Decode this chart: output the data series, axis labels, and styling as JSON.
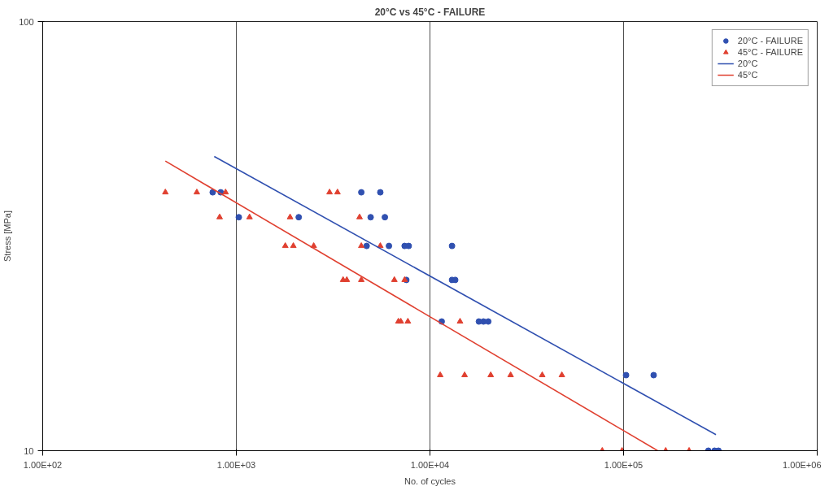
{
  "chart_data": {
    "type": "scatter",
    "title": "20°C vs 45°C - FAILURE",
    "xlabel": "No. of cycles",
    "ylabel": "Stress [MPa]",
    "log": "xy",
    "xlim": [
      100,
      1000000
    ],
    "ylim": [
      10,
      100
    ],
    "xticks": [
      {
        "value": 100,
        "label": "1.00E+02"
      },
      {
        "value": 1000,
        "label": "1.00E+03"
      },
      {
        "value": 10000,
        "label": "1.00E+04"
      },
      {
        "value": 100000,
        "label": "1.00E+05"
      },
      {
        "value": 1000000,
        "label": "1.00E+06"
      }
    ],
    "yticks": [
      10,
      100
    ],
    "grid": true,
    "legend": "top right",
    "series": [
      {
        "name": "20°C - FAILURE",
        "marker": "circle",
        "color": "#3050b0",
        "x": [
          755,
          830,
          4420,
          5540,
          1030,
          2100,
          4940,
          5850,
          4710,
          6140,
          7400,
          7770,
          13000,
          7550,
          13000,
          13500,
          11500,
          17900,
          18900,
          20000,
          103000,
          143000,
          274000,
          295000,
          309000
        ],
        "values": [
          40,
          40,
          40,
          40,
          35,
          35,
          35,
          35,
          30,
          30,
          30,
          30,
          30,
          25,
          25,
          25,
          20,
          20,
          20,
          20,
          15,
          15,
          10,
          10,
          10
        ]
      },
      {
        "name": "45°C - FAILURE",
        "marker": "triangle",
        "color": "#e04030",
        "x": [
          430,
          625,
          880,
          3030,
          3330,
          820,
          1170,
          1895,
          4330,
          1790,
          1970,
          2510,
          4420,
          5540,
          3560,
          3720,
          4420,
          6550,
          7400,
          6870,
          7070,
          7690,
          14300,
          11300,
          15100,
          20600,
          26100,
          38000,
          48000,
          77600,
          98200,
          165000,
          218000
        ],
        "values": [
          40,
          40,
          40,
          40,
          40,
          35,
          35,
          35,
          35,
          30,
          30,
          30,
          30,
          30,
          25,
          25,
          25,
          25,
          25,
          20,
          20,
          20,
          20,
          15,
          15,
          15,
          15,
          15,
          15,
          10,
          10,
          10,
          10
        ]
      },
      {
        "name": "20°C",
        "type": "line",
        "marker": "none",
        "color": "#3050b0",
        "x": [
          769,
          300000
        ],
        "values": [
          48.5,
          10.9
        ]
      },
      {
        "name": "45°C",
        "type": "line",
        "marker": "none",
        "color": "#e04030",
        "x": [
          430,
          150000
        ],
        "values": [
          47.3,
          10
        ]
      }
    ]
  }
}
